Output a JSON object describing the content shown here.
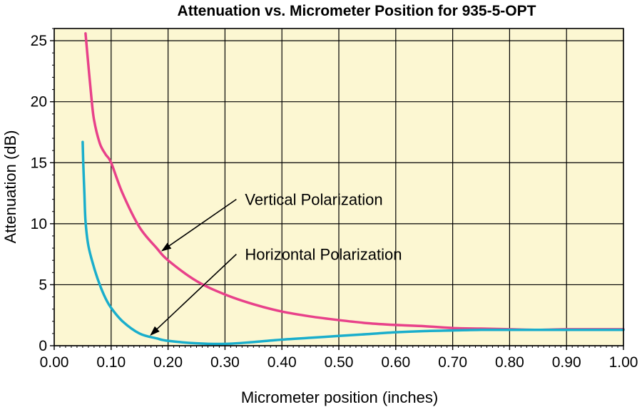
{
  "chart_data": {
    "type": "line",
    "title": "Attenuation vs. Micrometer Position for 935-5-OPT",
    "xlabel": "Micrometer position (inches)",
    "ylabel": "Attenuation (dB)",
    "xlim": [
      0,
      1.0
    ],
    "ylim": [
      0,
      26
    ],
    "x_ticks": [
      "0.00",
      "0.10",
      "0.20",
      "0.30",
      "0.40",
      "0.50",
      "0.60",
      "0.70",
      "0.80",
      "0.90",
      "1.00"
    ],
    "y_ticks": [
      "0",
      "5",
      "10",
      "15",
      "20",
      "25"
    ],
    "grid": true,
    "background_color": "#fcf7d2",
    "series": [
      {
        "name": "Vertical Polarization",
        "color": "#e8418a",
        "x": [
          0.055,
          0.06,
          0.065,
          0.07,
          0.08,
          0.09,
          0.1,
          0.12,
          0.15,
          0.18,
          0.2,
          0.25,
          0.3,
          0.35,
          0.4,
          0.45,
          0.5,
          0.55,
          0.6,
          0.65,
          0.7,
          0.75,
          0.8,
          0.85,
          0.9,
          0.95,
          1.0
        ],
        "y": [
          25.6,
          23.0,
          20.5,
          18.5,
          16.6,
          15.7,
          15.0,
          12.5,
          9.7,
          8.0,
          7.0,
          5.3,
          4.2,
          3.4,
          2.8,
          2.4,
          2.1,
          1.85,
          1.7,
          1.6,
          1.45,
          1.4,
          1.35,
          1.3,
          1.35,
          1.35,
          1.35
        ]
      },
      {
        "name": "Horizontal Polarization",
        "color": "#1aaecc",
        "x": [
          0.05,
          0.051,
          0.053,
          0.055,
          0.06,
          0.07,
          0.08,
          0.09,
          0.1,
          0.12,
          0.15,
          0.18,
          0.2,
          0.25,
          0.3,
          0.35,
          0.4,
          0.45,
          0.5,
          0.55,
          0.6,
          0.65,
          0.7,
          0.75,
          0.8,
          0.85,
          0.9,
          0.95,
          1.0
        ],
        "y": [
          16.7,
          15.0,
          12.5,
          10.2,
          8.2,
          6.4,
          5.0,
          3.9,
          3.1,
          2.0,
          1.0,
          0.6,
          0.4,
          0.2,
          0.15,
          0.3,
          0.5,
          0.65,
          0.8,
          0.95,
          1.1,
          1.2,
          1.25,
          1.3,
          1.3,
          1.3,
          1.3,
          1.3,
          1.3
        ]
      }
    ],
    "annotations": [
      {
        "text": "Vertical Polarization",
        "arrow_from": [
          0.32,
          12.0
        ],
        "arrow_to": [
          0.19,
          7.8
        ]
      },
      {
        "text": "Horizontal Polarization",
        "arrow_from": [
          0.32,
          7.5
        ],
        "arrow_to": [
          0.17,
          0.9
        ]
      }
    ]
  }
}
